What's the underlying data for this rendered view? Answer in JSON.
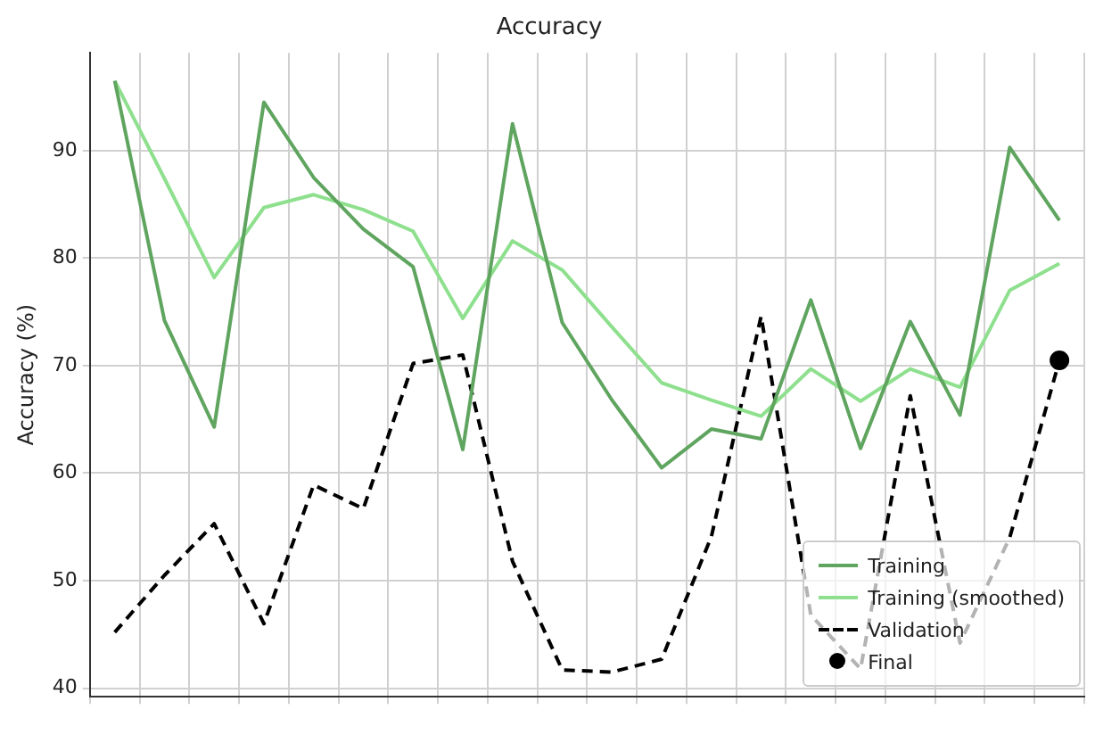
{
  "chart_data": {
    "type": "line",
    "title": "Accuracy",
    "ylabel": "Accuracy (%)",
    "categories": [
      null,
      null,
      null,
      null,
      null,
      null,
      null,
      null,
      null,
      null,
      null,
      null,
      null,
      null,
      null,
      null,
      null,
      null,
      null,
      null
    ],
    "ylim": [
      39.2,
      99.1
    ],
    "yticks": [
      40,
      50,
      60,
      70,
      80,
      90
    ],
    "grid": true,
    "legend": "bottom right",
    "series": [
      {
        "name": "Training",
        "color": "#5fa55f",
        "line_style": "solid",
        "marker": "none",
        "values": [
          96.5,
          74.2,
          64.3,
          94.5,
          87.5,
          82.7,
          79.2,
          62.2,
          92.5,
          74,
          66.8,
          60.5,
          64.1,
          63.2,
          76.1,
          62.3,
          74.1,
          65.4,
          90.3,
          83.5
        ]
      },
      {
        "name": "Training (smoothed)",
        "color": "#8ee08e",
        "line_style": "solid",
        "marker": "none",
        "values": [
          96.5,
          87.4,
          78.2,
          84.7,
          85.9,
          84.5,
          82.5,
          74.4,
          81.6,
          78.9,
          73.6,
          68.4,
          66.8,
          65.3,
          69.7,
          66.7,
          69.7,
          68.0,
          77.0,
          79.5
        ]
      },
      {
        "name": "Validation",
        "color": "#000000",
        "line_style": "dashed",
        "marker": "none",
        "values": [
          45.2,
          50.5,
          55.3,
          46.0,
          58.9,
          56.7,
          70.2,
          71.0,
          51.8,
          41.7,
          41.5,
          42.7,
          54.1,
          74.6,
          46.8,
          41.8,
          67.2,
          44.2,
          54.0,
          70.5
        ]
      },
      {
        "name": "Final",
        "type": "scatter",
        "color": "#000000",
        "marker": "circle",
        "values": [
          null,
          null,
          null,
          null,
          null,
          null,
          null,
          null,
          null,
          null,
          null,
          null,
          null,
          null,
          null,
          null,
          null,
          null,
          null,
          70.5
        ]
      }
    ]
  }
}
